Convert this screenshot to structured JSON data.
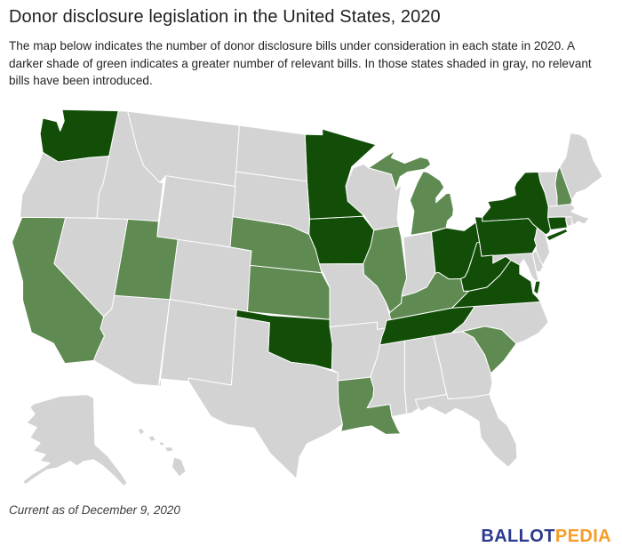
{
  "header": {
    "title": "Donor disclosure legislation in the United States, 2020",
    "subtitle": "The map below indicates the number of donor disclosure bills under consideration in each state in 2020. A darker shade of green indicates a greater number of relevant bills. In those states shaded in gray, no relevant bills have been introduced."
  },
  "footer": {
    "note": "Current as of December 9, 2020",
    "logo": {
      "ballot": "BALLOT",
      "pedia": "PEDIA",
      "ballot_color": "#2a3b8e",
      "pedia_color": "#f79d28"
    }
  },
  "map": {
    "border_color": "#ffffff",
    "water_color": "#ffffff",
    "shade_colors": [
      "#d3d3d3",
      "#5f8a52",
      "#124e07"
    ],
    "shade_meaning": [
      "No relevant bills introduced (gray)",
      "Relevant bills under consideration (lighter green)",
      "Greater number of relevant bills (darker green)"
    ],
    "states": [
      {
        "abbr": "AL",
        "name": "Alabama",
        "level": 0
      },
      {
        "abbr": "AK",
        "name": "Alaska",
        "level": 0
      },
      {
        "abbr": "AZ",
        "name": "Arizona",
        "level": 0
      },
      {
        "abbr": "AR",
        "name": "Arkansas",
        "level": 0
      },
      {
        "abbr": "CA",
        "name": "California",
        "level": 1
      },
      {
        "abbr": "CO",
        "name": "Colorado",
        "level": 0
      },
      {
        "abbr": "CT",
        "name": "Connecticut",
        "level": 2
      },
      {
        "abbr": "DE",
        "name": "Delaware",
        "level": 0
      },
      {
        "abbr": "FL",
        "name": "Florida",
        "level": 0
      },
      {
        "abbr": "GA",
        "name": "Georgia",
        "level": 0
      },
      {
        "abbr": "HI",
        "name": "Hawaii",
        "level": 0
      },
      {
        "abbr": "ID",
        "name": "Idaho",
        "level": 0
      },
      {
        "abbr": "IL",
        "name": "Illinois",
        "level": 1
      },
      {
        "abbr": "IN",
        "name": "Indiana",
        "level": 0
      },
      {
        "abbr": "IA",
        "name": "Iowa",
        "level": 2
      },
      {
        "abbr": "KS",
        "name": "Kansas",
        "level": 1
      },
      {
        "abbr": "KY",
        "name": "Kentucky",
        "level": 1
      },
      {
        "abbr": "LA",
        "name": "Louisiana",
        "level": 1
      },
      {
        "abbr": "ME",
        "name": "Maine",
        "level": 0
      },
      {
        "abbr": "MD",
        "name": "Maryland",
        "level": 0
      },
      {
        "abbr": "MA",
        "name": "Massachusetts",
        "level": 0
      },
      {
        "abbr": "MI",
        "name": "Michigan",
        "level": 1
      },
      {
        "abbr": "MN",
        "name": "Minnesota",
        "level": 2
      },
      {
        "abbr": "MS",
        "name": "Mississippi",
        "level": 0
      },
      {
        "abbr": "MO",
        "name": "Missouri",
        "level": 0
      },
      {
        "abbr": "MT",
        "name": "Montana",
        "level": 0
      },
      {
        "abbr": "NE",
        "name": "Nebraska",
        "level": 1
      },
      {
        "abbr": "NV",
        "name": "Nevada",
        "level": 0
      },
      {
        "abbr": "NH",
        "name": "New Hampshire",
        "level": 1
      },
      {
        "abbr": "NJ",
        "name": "New Jersey",
        "level": 0
      },
      {
        "abbr": "NM",
        "name": "New Mexico",
        "level": 0
      },
      {
        "abbr": "NY",
        "name": "New York",
        "level": 2
      },
      {
        "abbr": "NC",
        "name": "North Carolina",
        "level": 0
      },
      {
        "abbr": "ND",
        "name": "North Dakota",
        "level": 0
      },
      {
        "abbr": "OH",
        "name": "Ohio",
        "level": 2
      },
      {
        "abbr": "OK",
        "name": "Oklahoma",
        "level": 2
      },
      {
        "abbr": "OR",
        "name": "Oregon",
        "level": 0
      },
      {
        "abbr": "PA",
        "name": "Pennsylvania",
        "level": 2
      },
      {
        "abbr": "RI",
        "name": "Rhode Island",
        "level": 0
      },
      {
        "abbr": "SC",
        "name": "South Carolina",
        "level": 1
      },
      {
        "abbr": "SD",
        "name": "South Dakota",
        "level": 0
      },
      {
        "abbr": "TN",
        "name": "Tennessee",
        "level": 2
      },
      {
        "abbr": "TX",
        "name": "Texas",
        "level": 0
      },
      {
        "abbr": "UT",
        "name": "Utah",
        "level": 1
      },
      {
        "abbr": "VT",
        "name": "Vermont",
        "level": 0
      },
      {
        "abbr": "VA",
        "name": "Virginia",
        "level": 2
      },
      {
        "abbr": "WA",
        "name": "Washington",
        "level": 2
      },
      {
        "abbr": "WV",
        "name": "West Virginia",
        "level": 2
      },
      {
        "abbr": "WI",
        "name": "Wisconsin",
        "level": 0
      },
      {
        "abbr": "WY",
        "name": "Wyoming",
        "level": 0
      }
    ]
  }
}
